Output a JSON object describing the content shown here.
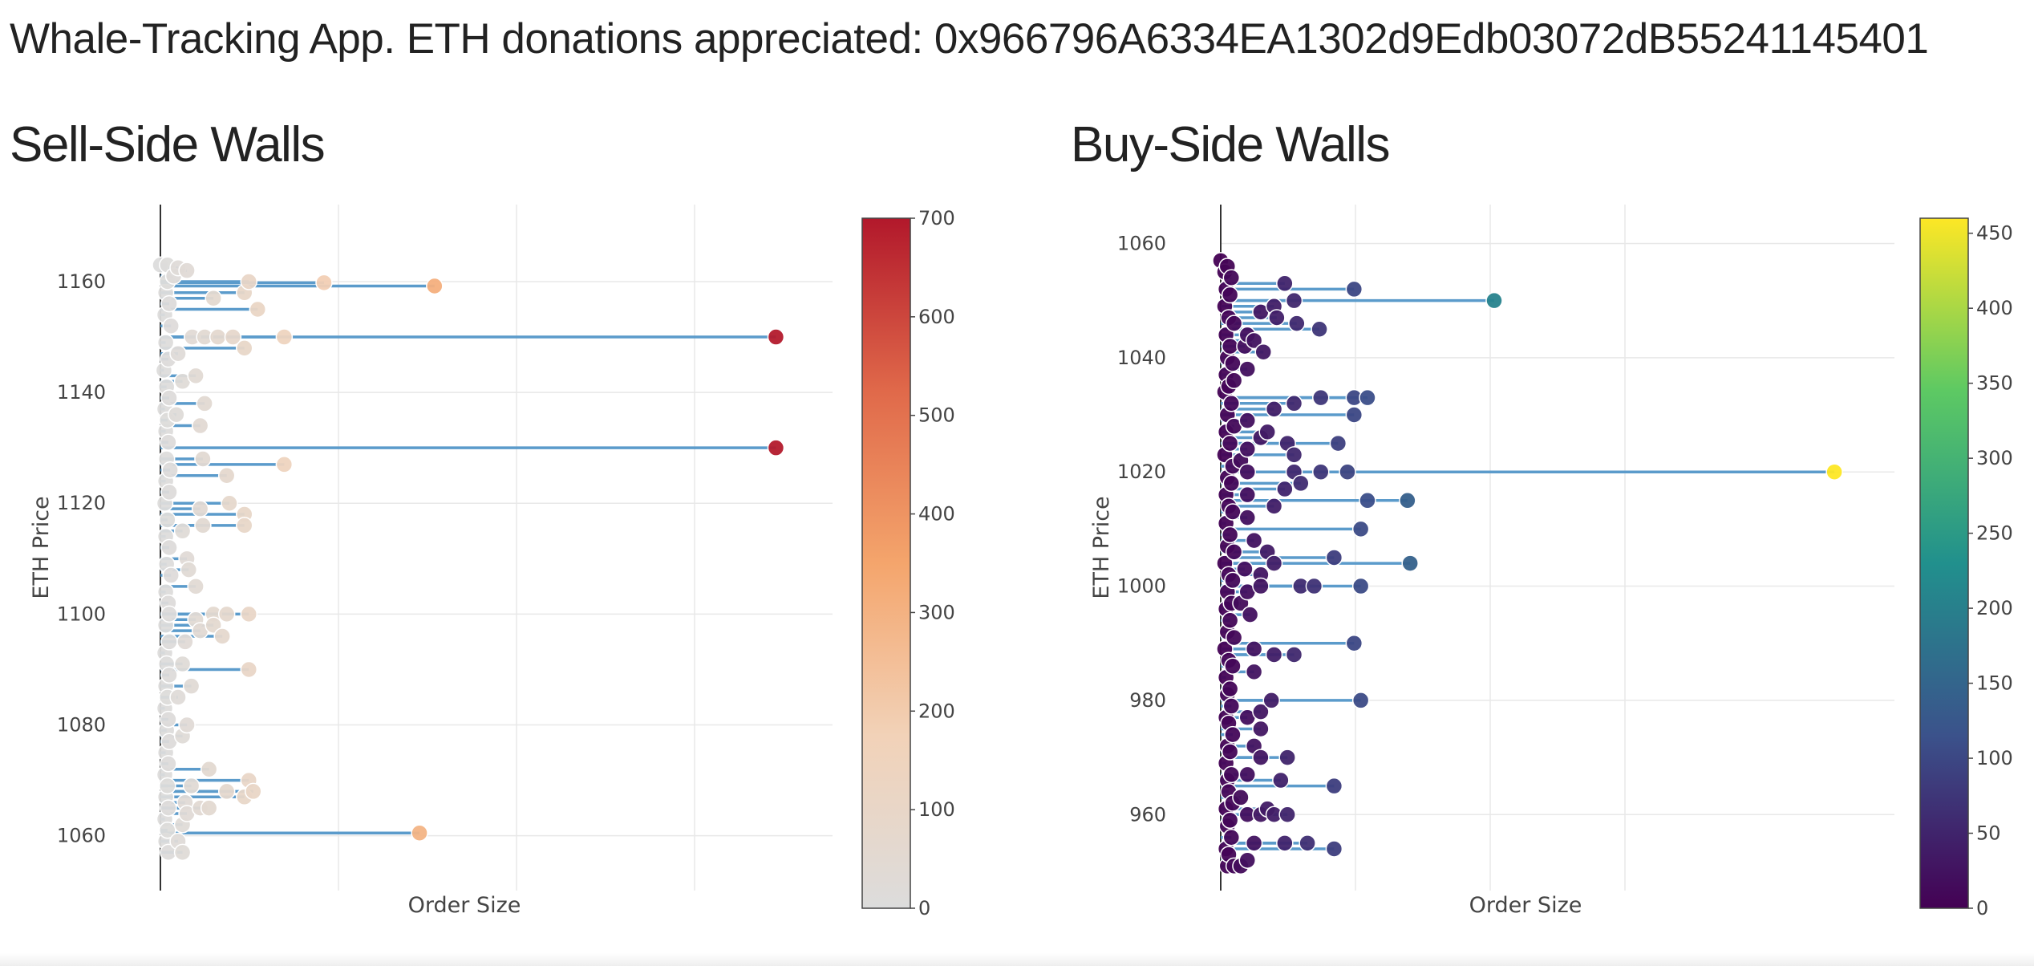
{
  "header": {
    "title": "Whale-Tracking App. ETH donations appreciated: 0x966796A6334EA1302d9Edb03072dB55241145401"
  },
  "panels": {
    "sell_title": "Sell-Side Walls",
    "buy_title": "Buy-Side Walls"
  },
  "colors": {
    "line": "#5b9bcb",
    "sell_colorscale": [
      "#dcdcdc",
      "#f2d2b8",
      "#f4a56c",
      "#e0694a",
      "#b2182b"
    ],
    "buy_colorscale": [
      "#440154",
      "#3b528b",
      "#21908d",
      "#5dc963",
      "#fde725"
    ]
  },
  "chart_data": [
    {
      "type": "scatter",
      "title": "Sell-Side Walls",
      "xlabel": "Order Size",
      "ylabel": "ETH Price",
      "ylim": [
        1053,
        1171
      ],
      "xlim": [
        0,
        760
      ],
      "yticks": [
        1060,
        1080,
        1100,
        1120,
        1140,
        1160
      ],
      "colorbar": {
        "range": [
          0,
          700
        ],
        "ticks": [
          0,
          100,
          200,
          300,
          400,
          500,
          600,
          700
        ]
      },
      "grid": true,
      "points": [
        {
          "y": 1159.2,
          "x": 310
        },
        {
          "y": 1159.8,
          "x": 185
        },
        {
          "y": 1160,
          "x": 100
        },
        {
          "y": 1158,
          "x": 95
        },
        {
          "y": 1157,
          "x": 60
        },
        {
          "y": 1155,
          "x": 110
        },
        {
          "y": 1162,
          "x": 30
        },
        {
          "y": 1161,
          "x": 15
        },
        {
          "y": 1150,
          "x": 696
        },
        {
          "y": 1150,
          "x": 140
        },
        {
          "y": 1150,
          "x": 82
        },
        {
          "y": 1150,
          "x": 65
        },
        {
          "y": 1150,
          "x": 50
        },
        {
          "y": 1150,
          "x": 36
        },
        {
          "y": 1148,
          "x": 95
        },
        {
          "y": 1147,
          "x": 20
        },
        {
          "y": 1143,
          "x": 40
        },
        {
          "y": 1142,
          "x": 25
        },
        {
          "y": 1138,
          "x": 50
        },
        {
          "y": 1136,
          "x": 18
        },
        {
          "y": 1134,
          "x": 45
        },
        {
          "y": 1130,
          "x": 696
        },
        {
          "y": 1127,
          "x": 140
        },
        {
          "y": 1128,
          "x": 48
        },
        {
          "y": 1125,
          "x": 75
        },
        {
          "y": 1120,
          "x": 78
        },
        {
          "y": 1118,
          "x": 95
        },
        {
          "y": 1116,
          "x": 95
        },
        {
          "y": 1119,
          "x": 45
        },
        {
          "y": 1116,
          "x": 48
        },
        {
          "y": 1115,
          "x": 25
        },
        {
          "y": 1110,
          "x": 30
        },
        {
          "y": 1108,
          "x": 32
        },
        {
          "y": 1105,
          "x": 40
        },
        {
          "y": 1100,
          "x": 100
        },
        {
          "y": 1100,
          "x": 75
        },
        {
          "y": 1100,
          "x": 60
        },
        {
          "y": 1099,
          "x": 40
        },
        {
          "y": 1098,
          "x": 60
        },
        {
          "y": 1097,
          "x": 45
        },
        {
          "y": 1096,
          "x": 70
        },
        {
          "y": 1095,
          "x": 28
        },
        {
          "y": 1090,
          "x": 100
        },
        {
          "y": 1091,
          "x": 25
        },
        {
          "y": 1087,
          "x": 35
        },
        {
          "y": 1085,
          "x": 20
        },
        {
          "y": 1080,
          "x": 30
        },
        {
          "y": 1078,
          "x": 25
        },
        {
          "y": 1072,
          "x": 55
        },
        {
          "y": 1070,
          "x": 100
        },
        {
          "y": 1069,
          "x": 35
        },
        {
          "y": 1068,
          "x": 105
        },
        {
          "y": 1068,
          "x": 75
        },
        {
          "y": 1067,
          "x": 95
        },
        {
          "y": 1066,
          "x": 28
        },
        {
          "y": 1065,
          "x": 55
        },
        {
          "y": 1065,
          "x": 45
        },
        {
          "y": 1064,
          "x": 30
        },
        {
          "y": 1062,
          "x": 25
        },
        {
          "y": 1060.5,
          "x": 293
        },
        {
          "y": 1059,
          "x": 20
        },
        {
          "y": 1057,
          "x": 25
        },
        {
          "y": 1163,
          "x": 0
        },
        {
          "y": 1163,
          "x": 8
        },
        {
          "y": 1162.5,
          "x": 20
        },
        {
          "y": 1160,
          "x": 8
        },
        {
          "y": 1158,
          "x": 6
        },
        {
          "y": 1156,
          "x": 10
        },
        {
          "y": 1154,
          "x": 5
        },
        {
          "y": 1152,
          "x": 12
        },
        {
          "y": 1149,
          "x": 6
        },
        {
          "y": 1146,
          "x": 9
        },
        {
          "y": 1144,
          "x": 4
        },
        {
          "y": 1141,
          "x": 7
        },
        {
          "y": 1139,
          "x": 10
        },
        {
          "y": 1137,
          "x": 5
        },
        {
          "y": 1135,
          "x": 8
        },
        {
          "y": 1133,
          "x": 6
        },
        {
          "y": 1131,
          "x": 9
        },
        {
          "y": 1128,
          "x": 7
        },
        {
          "y": 1126,
          "x": 11
        },
        {
          "y": 1124,
          "x": 6
        },
        {
          "y": 1122,
          "x": 10
        },
        {
          "y": 1120,
          "x": 5
        },
        {
          "y": 1117,
          "x": 8
        },
        {
          "y": 1114,
          "x": 6
        },
        {
          "y": 1112,
          "x": 10
        },
        {
          "y": 1109,
          "x": 7
        },
        {
          "y": 1107,
          "x": 12
        },
        {
          "y": 1104,
          "x": 6
        },
        {
          "y": 1102,
          "x": 9
        },
        {
          "y": 1100,
          "x": 10
        },
        {
          "y": 1098,
          "x": 6
        },
        {
          "y": 1095,
          "x": 10
        },
        {
          "y": 1093,
          "x": 5
        },
        {
          "y": 1091,
          "x": 7
        },
        {
          "y": 1089,
          "x": 10
        },
        {
          "y": 1087,
          "x": 6
        },
        {
          "y": 1085,
          "x": 8
        },
        {
          "y": 1083,
          "x": 5
        },
        {
          "y": 1081,
          "x": 9
        },
        {
          "y": 1079,
          "x": 7
        },
        {
          "y": 1077,
          "x": 10
        },
        {
          "y": 1075,
          "x": 6
        },
        {
          "y": 1073,
          "x": 9
        },
        {
          "y": 1071,
          "x": 5
        },
        {
          "y": 1069,
          "x": 8
        },
        {
          "y": 1067,
          "x": 6
        },
        {
          "y": 1065,
          "x": 9
        },
        {
          "y": 1063,
          "x": 5
        },
        {
          "y": 1061,
          "x": 8
        },
        {
          "y": 1059,
          "x": 6
        },
        {
          "y": 1057,
          "x": 9
        }
      ]
    },
    {
      "type": "scatter",
      "title": "Buy-Side Walls",
      "xlabel": "Order Size",
      "ylabel": "ETH Price",
      "ylim": [
        949.5,
        1064
      ],
      "xlim": [
        0,
        505
      ],
      "yticks": [
        960,
        980,
        1000,
        1020,
        1040,
        1060
      ],
      "colorbar": {
        "range": [
          0,
          460
        ],
        "ticks": [
          0,
          50,
          100,
          150,
          200,
          250,
          300,
          350,
          400,
          450
        ]
      },
      "grid": true,
      "points": [
        {
          "y": 1052,
          "x": 100
        },
        {
          "y": 1053,
          "x": 48
        },
        {
          "y": 1050,
          "x": 205
        },
        {
          "y": 1050,
          "x": 55
        },
        {
          "y": 1049,
          "x": 40
        },
        {
          "y": 1048,
          "x": 30
        },
        {
          "y": 1047,
          "x": 42
        },
        {
          "y": 1046,
          "x": 57
        },
        {
          "y": 1045,
          "x": 74
        },
        {
          "y": 1044,
          "x": 20
        },
        {
          "y": 1043,
          "x": 25
        },
        {
          "y": 1042,
          "x": 18
        },
        {
          "y": 1041,
          "x": 32
        },
        {
          "y": 1038,
          "x": 20
        },
        {
          "y": 1036,
          "x": 10
        },
        {
          "y": 1033,
          "x": 100
        },
        {
          "y": 1033,
          "x": 110
        },
        {
          "y": 1033,
          "x": 75
        },
        {
          "y": 1032,
          "x": 55
        },
        {
          "y": 1031,
          "x": 40
        },
        {
          "y": 1030,
          "x": 100
        },
        {
          "y": 1029,
          "x": 20
        },
        {
          "y": 1027,
          "x": 35
        },
        {
          "y": 1026,
          "x": 30
        },
        {
          "y": 1025,
          "x": 88
        },
        {
          "y": 1025,
          "x": 50
        },
        {
          "y": 1024,
          "x": 20
        },
        {
          "y": 1023,
          "x": 55
        },
        {
          "y": 1022,
          "x": 15
        },
        {
          "y": 1020,
          "x": 460
        },
        {
          "y": 1020,
          "x": 95
        },
        {
          "y": 1020,
          "x": 75
        },
        {
          "y": 1020,
          "x": 55
        },
        {
          "y": 1020,
          "x": 20
        },
        {
          "y": 1018,
          "x": 60
        },
        {
          "y": 1017,
          "x": 48
        },
        {
          "y": 1016,
          "x": 20
        },
        {
          "y": 1015,
          "x": 140
        },
        {
          "y": 1015,
          "x": 110
        },
        {
          "y": 1014,
          "x": 40
        },
        {
          "y": 1012,
          "x": 20
        },
        {
          "y": 1010,
          "x": 105
        },
        {
          "y": 1008,
          "x": 25
        },
        {
          "y": 1006,
          "x": 35
        },
        {
          "y": 1005,
          "x": 85
        },
        {
          "y": 1004,
          "x": 142
        },
        {
          "y": 1004,
          "x": 40
        },
        {
          "y": 1003,
          "x": 18
        },
        {
          "y": 1002,
          "x": 30
        },
        {
          "y": 1000,
          "x": 105
        },
        {
          "y": 1000,
          "x": 70
        },
        {
          "y": 1000,
          "x": 60
        },
        {
          "y": 1000,
          "x": 30
        },
        {
          "y": 999,
          "x": 20
        },
        {
          "y": 997,
          "x": 15
        },
        {
          "y": 995,
          "x": 22
        },
        {
          "y": 990,
          "x": 100
        },
        {
          "y": 989,
          "x": 25
        },
        {
          "y": 988,
          "x": 55
        },
        {
          "y": 988,
          "x": 40
        },
        {
          "y": 985,
          "x": 25
        },
        {
          "y": 980,
          "x": 105
        },
        {
          "y": 980,
          "x": 38
        },
        {
          "y": 978,
          "x": 30
        },
        {
          "y": 977,
          "x": 20
        },
        {
          "y": 975,
          "x": 30
        },
        {
          "y": 972,
          "x": 25
        },
        {
          "y": 970,
          "x": 50
        },
        {
          "y": 970,
          "x": 30
        },
        {
          "y": 967,
          "x": 20
        },
        {
          "y": 965,
          "x": 85
        },
        {
          "y": 966,
          "x": 45
        },
        {
          "y": 963,
          "x": 15
        },
        {
          "y": 961,
          "x": 35
        },
        {
          "y": 960,
          "x": 50
        },
        {
          "y": 960,
          "x": 40
        },
        {
          "y": 960,
          "x": 30
        },
        {
          "y": 960,
          "x": 20
        },
        {
          "y": 955,
          "x": 65
        },
        {
          "y": 955,
          "x": 48
        },
        {
          "y": 954,
          "x": 85
        },
        {
          "y": 955,
          "x": 25
        },
        {
          "y": 952,
          "x": 20
        },
        {
          "y": 951,
          "x": 5
        },
        {
          "y": 951,
          "x": 10
        },
        {
          "y": 951,
          "x": 15
        },
        {
          "y": 1057,
          "x": 0
        },
        {
          "y": 1056,
          "x": 5
        },
        {
          "y": 1055,
          "x": 3
        },
        {
          "y": 1054,
          "x": 8
        },
        {
          "y": 1052,
          "x": 4
        },
        {
          "y": 1051,
          "x": 7
        },
        {
          "y": 1049,
          "x": 3
        },
        {
          "y": 1047,
          "x": 6
        },
        {
          "y": 1046,
          "x": 10
        },
        {
          "y": 1044,
          "x": 4
        },
        {
          "y": 1042,
          "x": 7
        },
        {
          "y": 1040,
          "x": 5
        },
        {
          "y": 1039,
          "x": 9
        },
        {
          "y": 1037,
          "x": 4
        },
        {
          "y": 1035,
          "x": 6
        },
        {
          "y": 1034,
          "x": 3
        },
        {
          "y": 1032,
          "x": 8
        },
        {
          "y": 1030,
          "x": 5
        },
        {
          "y": 1028,
          "x": 10
        },
        {
          "y": 1027,
          "x": 4
        },
        {
          "y": 1025,
          "x": 7
        },
        {
          "y": 1023,
          "x": 3
        },
        {
          "y": 1021,
          "x": 9
        },
        {
          "y": 1019,
          "x": 5
        },
        {
          "y": 1018,
          "x": 8
        },
        {
          "y": 1016,
          "x": 4
        },
        {
          "y": 1014,
          "x": 6
        },
        {
          "y": 1013,
          "x": 9
        },
        {
          "y": 1011,
          "x": 4
        },
        {
          "y": 1009,
          "x": 7
        },
        {
          "y": 1007,
          "x": 5
        },
        {
          "y": 1006,
          "x": 10
        },
        {
          "y": 1004,
          "x": 3
        },
        {
          "y": 1002,
          "x": 6
        },
        {
          "y": 1001,
          "x": 9
        },
        {
          "y": 999,
          "x": 5
        },
        {
          "y": 997,
          "x": 8
        },
        {
          "y": 996,
          "x": 4
        },
        {
          "y": 994,
          "x": 7
        },
        {
          "y": 992,
          "x": 5
        },
        {
          "y": 991,
          "x": 10
        },
        {
          "y": 989,
          "x": 3
        },
        {
          "y": 987,
          "x": 6
        },
        {
          "y": 986,
          "x": 9
        },
        {
          "y": 984,
          "x": 4
        },
        {
          "y": 982,
          "x": 7
        },
        {
          "y": 981,
          "x": 5
        },
        {
          "y": 979,
          "x": 8
        },
        {
          "y": 977,
          "x": 4
        },
        {
          "y": 976,
          "x": 6
        },
        {
          "y": 974,
          "x": 9
        },
        {
          "y": 972,
          "x": 5
        },
        {
          "y": 971,
          "x": 7
        },
        {
          "y": 969,
          "x": 4
        },
        {
          "y": 967,
          "x": 8
        },
        {
          "y": 966,
          "x": 5
        },
        {
          "y": 964,
          "x": 6
        },
        {
          "y": 962,
          "x": 9
        },
        {
          "y": 961,
          "x": 4
        },
        {
          "y": 959,
          "x": 7
        },
        {
          "y": 958,
          "x": 5
        },
        {
          "y": 956,
          "x": 8
        },
        {
          "y": 954,
          "x": 4
        },
        {
          "y": 953,
          "x": 6
        }
      ]
    }
  ]
}
